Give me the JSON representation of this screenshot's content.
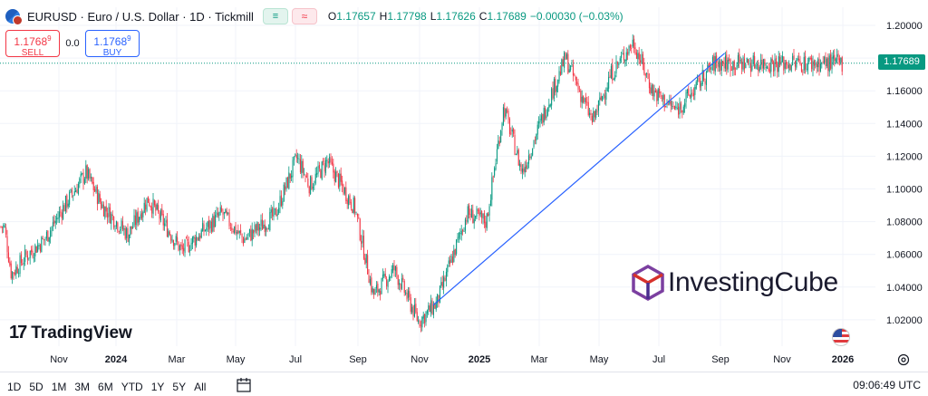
{
  "header": {
    "symbol": "EURUSD · Euro / U.S. Dollar · 1D · Tickmill",
    "live_icon": "≡",
    "compare_icon": "≈",
    "ohlc": [
      {
        "k": "O",
        "v": "1.17657"
      },
      {
        "k": "H",
        "v": "1.17798"
      },
      {
        "k": "L",
        "v": "1.17626"
      },
      {
        "k": "C",
        "v": "1.17689"
      },
      {
        "k": "",
        "v": "−0.00030 (−0.03%)"
      }
    ]
  },
  "trade": {
    "sell_price": "1.1768",
    "sell_sup": "9",
    "sell_label": "SELL",
    "spread": "0.0",
    "buy_price": "1.1768",
    "buy_sup": "9",
    "buy_label": "BUY"
  },
  "current_price_label": "1.17689",
  "watermarks": {
    "tradingview": "TradingView",
    "tradingview_mark": "17",
    "investingcube": "InvestingCube"
  },
  "timeframes": [
    "1D",
    "5D",
    "1M",
    "3M",
    "6M",
    "YTD",
    "1Y",
    "5Y",
    "All"
  ],
  "clock": "09:06:49 UTC",
  "colors": {
    "up": "#089981",
    "down": "#f23645",
    "trendline": "#2962ff",
    "price_tag": "#089981",
    "investingcube_cube": "#7b3fa0"
  },
  "chart_data": {
    "type": "candlestick",
    "title": "EURUSD · Euro / U.S. Dollar · 1D · Tickmill",
    "y_ticks": [
      "1.20000",
      "1.18000",
      "1.16000",
      "1.14000",
      "1.12000",
      "1.10000",
      "1.08000",
      "1.06000",
      "1.04000",
      "1.02000"
    ],
    "ylim": [
      1.01,
      1.207
    ],
    "x_ticks": [
      {
        "label": "Nov",
        "bold": false
      },
      {
        "label": "2024",
        "bold": true
      },
      {
        "label": "Mar",
        "bold": false
      },
      {
        "label": "May",
        "bold": false
      },
      {
        "label": "Jul",
        "bold": false
      },
      {
        "label": "Sep",
        "bold": false
      },
      {
        "label": "Nov",
        "bold": false
      },
      {
        "label": "2025",
        "bold": true
      },
      {
        "label": "Mar",
        "bold": false
      },
      {
        "label": "May",
        "bold": false
      },
      {
        "label": "Jul",
        "bold": false
      },
      {
        "label": "Sep",
        "bold": false
      },
      {
        "label": "Nov",
        "bold": false
      },
      {
        "label": "2026",
        "bold": true
      }
    ],
    "approx_close_path": [
      {
        "date": "2023-09-25",
        "close": 1.077
      },
      {
        "date": "2023-10-03",
        "close": 1.048
      },
      {
        "date": "2023-10-20",
        "close": 1.059
      },
      {
        "date": "2023-11-10",
        "close": 1.069
      },
      {
        "date": "2023-12-01",
        "close": 1.088
      },
      {
        "date": "2023-12-28",
        "close": 1.11
      },
      {
        "date": "2024-01-15",
        "close": 1.09
      },
      {
        "date": "2024-02-14",
        "close": 1.072
      },
      {
        "date": "2024-03-08",
        "close": 1.094
      },
      {
        "date": "2024-04-16",
        "close": 1.062
      },
      {
        "date": "2024-06-01",
        "close": 1.085
      },
      {
        "date": "2024-06-26",
        "close": 1.069
      },
      {
        "date": "2024-08-01",
        "close": 1.084
      },
      {
        "date": "2024-08-26",
        "close": 1.119
      },
      {
        "date": "2024-09-10",
        "close": 1.102
      },
      {
        "date": "2024-09-30",
        "close": 1.117
      },
      {
        "date": "2024-11-01",
        "close": 1.088
      },
      {
        "date": "2024-11-22",
        "close": 1.035
      },
      {
        "date": "2024-12-16",
        "close": 1.051
      },
      {
        "date": "2025-01-13",
        "close": 1.019
      },
      {
        "date": "2025-02-03",
        "close": 1.03
      },
      {
        "date": "2025-03-10",
        "close": 1.085
      },
      {
        "date": "2025-04-01",
        "close": 1.08
      },
      {
        "date": "2025-04-21",
        "close": 1.15
      },
      {
        "date": "2025-05-12",
        "close": 1.11
      },
      {
        "date": "2025-06-13",
        "close": 1.156
      },
      {
        "date": "2025-07-01",
        "close": 1.18
      },
      {
        "date": "2025-08-01",
        "close": 1.141
      },
      {
        "date": "2025-08-22",
        "close": 1.17
      },
      {
        "date": "2025-09-17",
        "close": 1.19
      },
      {
        "date": "2025-10-09",
        "close": 1.16
      },
      {
        "date": "2025-11-05",
        "close": 1.148
      },
      {
        "date": "2025-11-25",
        "close": 1.16
      },
      {
        "date": "2025-12-19",
        "close": 1.177
      },
      {
        "date": "2025-12-30",
        "close": 1.1769
      }
    ],
    "trendline": {
      "from": {
        "date": "2025-01-30",
        "price": 1.029
      },
      "to": {
        "date": "2025-12-31",
        "price": 1.183
      }
    },
    "last_price": 1.17689
  }
}
